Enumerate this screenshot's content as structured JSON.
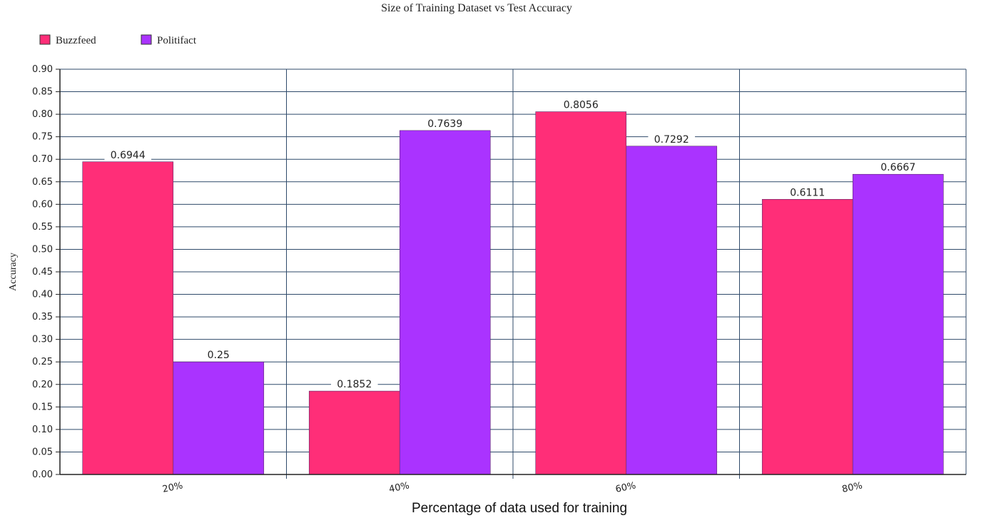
{
  "colors": {
    "buzzfeed": "#ff2e78",
    "politifact": "#aa33ff",
    "grid": "#2f4a6a",
    "axis": "#222222"
  },
  "chart_data": {
    "type": "bar",
    "title": "Size of Training Dataset vs Test Accuracy",
    "xlabel": "Percentage of data used for training",
    "ylabel": "Accuracy",
    "categories": [
      "20%",
      "40%",
      "60%",
      "80%"
    ],
    "series": [
      {
        "name": "Buzzfeed",
        "values": [
          0.6944,
          0.1852,
          0.8056,
          0.6111
        ],
        "labels": [
          "0.6944",
          "0.1852",
          "0.8056",
          "0.6111"
        ]
      },
      {
        "name": "Politifact",
        "values": [
          0.25,
          0.7639,
          0.7292,
          0.6667
        ],
        "labels": [
          "0.25",
          "0.7639",
          "0.7292",
          "0.6667"
        ]
      }
    ],
    "ylim": [
      0,
      0.9
    ],
    "yticks": [
      "0.00",
      "0.05",
      "0.10",
      "0.15",
      "0.20",
      "0.25",
      "0.30",
      "0.35",
      "0.40",
      "0.45",
      "0.50",
      "0.55",
      "0.60",
      "0.65",
      "0.70",
      "0.75",
      "0.80",
      "0.85",
      "0.90"
    ],
    "grid": true,
    "legend": "top-left"
  }
}
